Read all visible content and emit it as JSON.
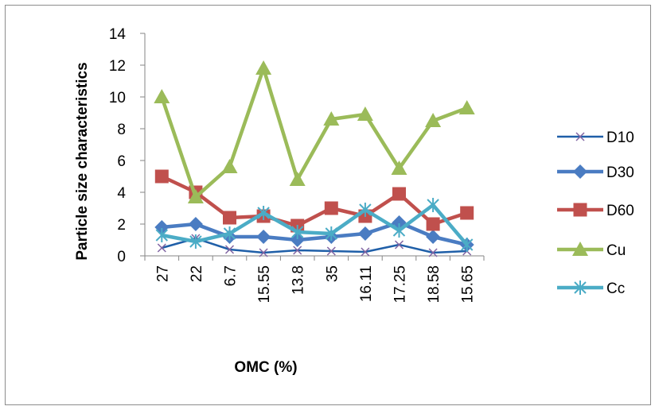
{
  "chart_data": {
    "type": "line",
    "title": "",
    "xlabel": "OMC (%)",
    "ylabel": "Particle size characteristics",
    "categories": [
      "27",
      "22",
      "6.7",
      "15.55",
      "13.8",
      "35",
      "16.11",
      "17.25",
      "18.58",
      "15.65"
    ],
    "ylim": [
      0,
      14
    ],
    "yticks": [
      0,
      2,
      4,
      6,
      8,
      10,
      12,
      14
    ],
    "grid": false,
    "legend_position": "right",
    "series": [
      {
        "name": "D10",
        "color": "#1f5fa8",
        "marker": "x",
        "values": [
          0.5,
          1.1,
          0.4,
          0.2,
          0.35,
          0.3,
          0.25,
          0.7,
          0.2,
          0.3
        ]
      },
      {
        "name": "D30",
        "color": "#4a7cc2",
        "marker": "diamond",
        "values": [
          1.8,
          2.0,
          1.2,
          1.2,
          1.0,
          1.2,
          1.4,
          2.1,
          1.2,
          0.7
        ]
      },
      {
        "name": "D60",
        "color": "#c0504d",
        "marker": "square",
        "values": [
          5.0,
          4.0,
          2.4,
          2.5,
          1.9,
          3.0,
          2.5,
          3.9,
          2.0,
          2.7
        ]
      },
      {
        "name": "Cu",
        "color": "#9bbb59",
        "marker": "triangle",
        "values": [
          10.0,
          3.7,
          5.6,
          11.8,
          4.8,
          8.6,
          8.9,
          5.5,
          8.5,
          9.3
        ]
      },
      {
        "name": "Cc",
        "color": "#4bacc6",
        "marker": "star",
        "values": [
          1.3,
          0.9,
          1.4,
          2.7,
          1.5,
          1.4,
          2.9,
          1.6,
          3.2,
          0.7
        ]
      }
    ]
  }
}
